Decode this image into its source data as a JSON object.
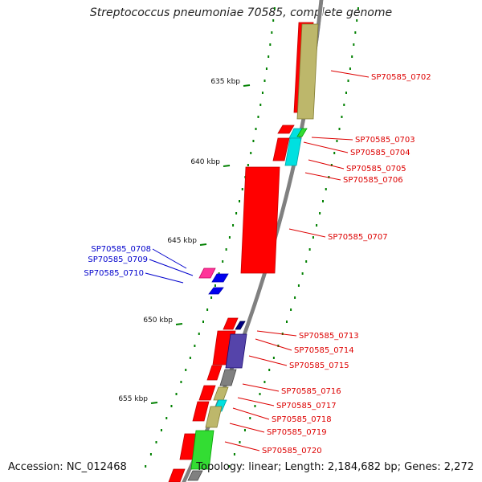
{
  "title": "Streptococcus pneumoniae 70585, complete genome",
  "accession_text": "Accession: NC_012468",
  "summary_text": "Topology: linear; Length: 2,184,682 bp; Genes: 2,272",
  "colors": {
    "red": "#ff0000",
    "khaki": "#bdb76b",
    "cyan": "#00e0e0",
    "green": "#33dd33",
    "magenta": "#ff3399",
    "blue": "#0000ee",
    "slate": "#5544aa",
    "grey": "#808080",
    "navy": "#000080",
    "label_red": "#dd0000",
    "label_blue": "#0000cc",
    "tick": "#008000",
    "axis": "#808080"
  },
  "kbp_ticks": [
    "635 kbp",
    "640 kbp",
    "645 kbp",
    "650 kbp",
    "655 kbp"
  ],
  "gene_labels_right": [
    "SP70585_0702",
    "SP70585_0703",
    "SP70585_0704",
    "SP70585_0705",
    "SP70585_0706",
    "SP70585_0707",
    "SP70585_0713",
    "SP70585_0714",
    "SP70585_0715",
    "SP70585_0716",
    "SP70585_0717",
    "SP70585_0718",
    "SP70585_0719",
    "SP70585_0720"
  ],
  "gene_labels_left": [
    "SP70585_0708",
    "SP70585_0709",
    "SP70585_0710"
  ]
}
